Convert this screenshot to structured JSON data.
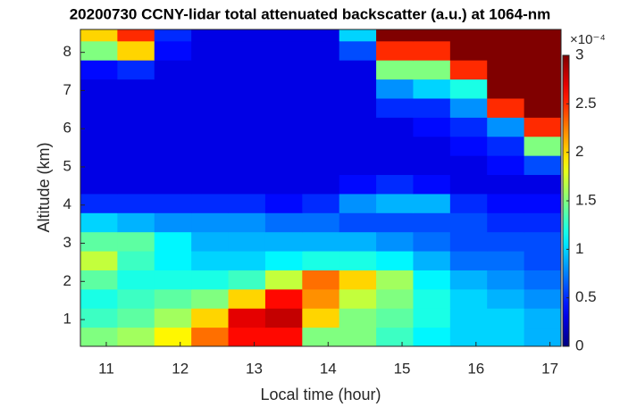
{
  "chart_data": {
    "type": "heatmap",
    "title": "20200730 CCNY-lidar total attenuated backscatter (a.u.) at 1064-nm",
    "x_label": "Local time (hour)",
    "y_label": "Altitude (km)",
    "xlim": [
      10.65,
      17.15
    ],
    "ylim": [
      0.3,
      8.6
    ],
    "xticks": [
      11,
      12,
      13,
      14,
      15,
      16,
      17
    ],
    "yticks": [
      1,
      2,
      3,
      4,
      5,
      6,
      7,
      8
    ],
    "xbins": [
      10.65,
      11.15,
      11.65,
      12.15,
      12.65,
      13.15,
      13.65,
      14.15,
      14.65,
      15.15,
      15.65,
      16.15,
      16.65,
      17.15
    ],
    "ybins": [
      0.3,
      0.8,
      1.3,
      1.8,
      2.3,
      2.8,
      3.3,
      3.8,
      4.3,
      4.8,
      5.3,
      5.8,
      6.3,
      6.8,
      7.3,
      7.8,
      8.3,
      8.6
    ],
    "colormap": "jet",
    "clim": [
      0,
      3
    ],
    "colorbar_ticks": [
      0,
      0.5,
      1,
      1.5,
      2,
      2.5,
      3
    ],
    "colorbar_exponent": "×10⁻⁴",
    "z": [
      [
        1.5,
        1.6,
        1.9,
        2.3,
        2.6,
        2.6,
        1.5,
        1.5,
        1.3,
        1.1,
        1.0,
        1.0,
        0.9
      ],
      [
        1.3,
        1.4,
        1.6,
        2.0,
        2.7,
        2.8,
        2.0,
        1.5,
        1.4,
        1.2,
        1.0,
        1.0,
        0.9
      ],
      [
        1.2,
        1.3,
        1.4,
        1.5,
        2.0,
        2.6,
        2.2,
        1.7,
        1.5,
        1.2,
        1.0,
        0.9,
        0.8
      ],
      [
        1.4,
        1.2,
        1.2,
        1.2,
        1.3,
        1.7,
        2.3,
        2.0,
        1.6,
        1.1,
        0.9,
        0.8,
        0.7
      ],
      [
        1.7,
        1.3,
        1.1,
        1.0,
        1.0,
        1.1,
        1.2,
        1.2,
        1.1,
        0.9,
        0.7,
        0.7,
        0.6
      ],
      [
        1.4,
        1.4,
        1.1,
        0.9,
        0.9,
        0.9,
        0.9,
        0.9,
        0.8,
        0.7,
        0.6,
        0.6,
        0.6
      ],
      [
        1.0,
        0.9,
        0.8,
        0.8,
        0.8,
        0.7,
        0.7,
        0.6,
        0.6,
        0.6,
        0.6,
        0.5,
        0.5
      ],
      [
        0.5,
        0.5,
        0.5,
        0.5,
        0.5,
        0.4,
        0.5,
        0.8,
        0.9,
        0.9,
        0.5,
        0.4,
        0.4
      ],
      [
        0.3,
        0.3,
        0.3,
        0.3,
        0.3,
        0.3,
        0.3,
        0.4,
        0.5,
        0.4,
        0.3,
        0.3,
        0.3
      ],
      [
        0.3,
        0.3,
        0.3,
        0.3,
        0.3,
        0.3,
        0.3,
        0.3,
        0.3,
        0.3,
        0.3,
        0.4,
        0.6
      ],
      [
        0.3,
        0.3,
        0.3,
        0.3,
        0.3,
        0.3,
        0.3,
        0.3,
        0.3,
        0.3,
        0.4,
        0.5,
        1.5
      ],
      [
        0.3,
        0.3,
        0.3,
        0.3,
        0.3,
        0.3,
        0.3,
        0.3,
        0.3,
        0.4,
        0.5,
        0.8,
        2.5
      ],
      [
        0.3,
        0.3,
        0.3,
        0.3,
        0.3,
        0.3,
        0.3,
        0.3,
        0.5,
        0.5,
        0.8,
        2.5,
        3.0
      ],
      [
        0.3,
        0.3,
        0.3,
        0.3,
        0.3,
        0.3,
        0.3,
        0.3,
        0.8,
        1.0,
        1.2,
        3.0,
        3.0
      ],
      [
        0.4,
        0.5,
        0.3,
        0.3,
        0.3,
        0.3,
        0.3,
        0.3,
        1.5,
        1.5,
        2.5,
        3.0,
        3.0
      ],
      [
        1.5,
        2.0,
        0.4,
        0.3,
        0.3,
        0.3,
        0.3,
        0.6,
        2.5,
        2.5,
        3.0,
        3.0,
        3.0
      ],
      [
        2.0,
        2.5,
        0.5,
        0.3,
        0.3,
        0.3,
        0.3,
        1.0,
        3.0,
        3.0,
        3.0,
        3.0,
        3.0
      ]
    ]
  }
}
